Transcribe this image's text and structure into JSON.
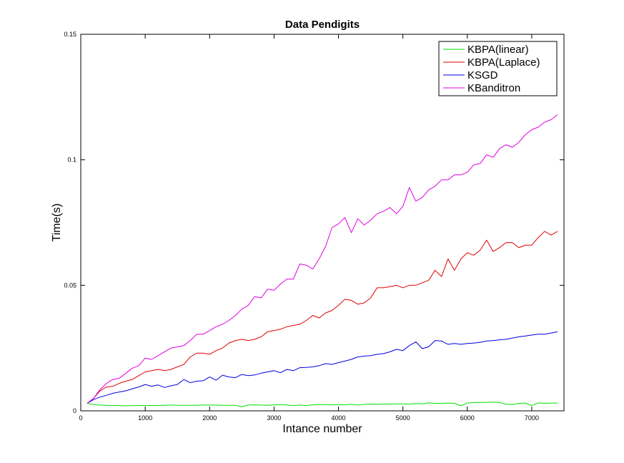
{
  "chart_data": {
    "type": "line",
    "title": "Data Pendigits",
    "xlabel": "Intance number",
    "ylabel": "Time(s)",
    "xlim": [
      0,
      7500
    ],
    "ylim": [
      0,
      0.15
    ],
    "xticks": [
      0,
      1000,
      2000,
      3000,
      4000,
      5000,
      6000,
      7000
    ],
    "xtick_labels": [
      "0",
      "1000",
      "2000",
      "3000",
      "4000",
      "5000",
      "6000",
      "7000"
    ],
    "yticks": [
      0,
      0.05,
      0.1,
      0.15
    ],
    "ytick_labels": [
      "0",
      "0.05",
      "0.1",
      "0.15"
    ],
    "grid": false,
    "legend_position": "top-right",
    "x": [
      100,
      200,
      300,
      400,
      500,
      600,
      700,
      800,
      900,
      1000,
      1100,
      1200,
      1300,
      1400,
      1500,
      1600,
      1700,
      1800,
      1900,
      2000,
      2100,
      2200,
      2300,
      2400,
      2500,
      2600,
      2700,
      2800,
      2900,
      3000,
      3100,
      3200,
      3300,
      3400,
      3500,
      3600,
      3700,
      3800,
      3900,
      4000,
      4100,
      4200,
      4300,
      4400,
      4500,
      4600,
      4700,
      4800,
      4900,
      5000,
      5100,
      5200,
      5300,
      5400,
      5500,
      5600,
      5700,
      5800,
      5900,
      6000,
      6100,
      6200,
      6300,
      6400,
      6500,
      6600,
      6700,
      6800,
      6900,
      7000,
      7100,
      7200,
      7300,
      7400
    ],
    "series": [
      {
        "name": "KBPA(linear)",
        "color": "#00e000",
        "values": [
          0.003,
          0.0025,
          0.0023,
          0.0022,
          0.0021,
          0.0021,
          0.002,
          0.0021,
          0.0021,
          0.0021,
          0.0021,
          0.0021,
          0.0022,
          0.0023,
          0.0022,
          0.0022,
          0.0022,
          0.0022,
          0.0023,
          0.0023,
          0.0023,
          0.0022,
          0.0022,
          0.0022,
          0.0016,
          0.0023,
          0.0024,
          0.0023,
          0.0022,
          0.0024,
          0.0025,
          0.0023,
          0.0021,
          0.0023,
          0.0021,
          0.0024,
          0.0025,
          0.0025,
          0.0024,
          0.0025,
          0.0024,
          0.0026,
          0.0023,
          0.0026,
          0.0027,
          0.0026,
          0.0027,
          0.0027,
          0.0028,
          0.0028,
          0.0027,
          0.0029,
          0.0028,
          0.0032,
          0.003,
          0.003,
          0.0031,
          0.003,
          0.002,
          0.0031,
          0.0033,
          0.0033,
          0.0034,
          0.0035,
          0.0033,
          0.0027,
          0.0025,
          0.003,
          0.0031,
          0.0021,
          0.0032,
          0.003,
          0.0031,
          0.0031
        ]
      },
      {
        "name": "KBPA(Laplace)",
        "color": "#e00000",
        "values": [
          0.003,
          0.005,
          0.008,
          0.0095,
          0.0098,
          0.011,
          0.0118,
          0.0125,
          0.014,
          0.0155,
          0.016,
          0.0165,
          0.016,
          0.0165,
          0.0175,
          0.0185,
          0.0215,
          0.023,
          0.023,
          0.0225,
          0.024,
          0.025,
          0.027,
          0.028,
          0.0285,
          0.028,
          0.0285,
          0.0295,
          0.0315,
          0.032,
          0.0325,
          0.0335,
          0.034,
          0.0345,
          0.036,
          0.038,
          0.037,
          0.039,
          0.04,
          0.042,
          0.0445,
          0.044,
          0.0425,
          0.043,
          0.045,
          0.049,
          0.049,
          0.0495,
          0.05,
          0.049,
          0.05,
          0.05,
          0.051,
          0.052,
          0.056,
          0.0535,
          0.0605,
          0.056,
          0.0605,
          0.063,
          0.062,
          0.064,
          0.068,
          0.0635,
          0.065,
          0.067,
          0.067,
          0.065,
          0.066,
          0.066,
          0.069,
          0.0715,
          0.07,
          0.0715
        ]
      },
      {
        "name": "KSGD",
        "color": "#0000e0",
        "values": [
          0.003,
          0.0045,
          0.0055,
          0.0062,
          0.007,
          0.0075,
          0.008,
          0.0088,
          0.0095,
          0.0105,
          0.0098,
          0.0103,
          0.0093,
          0.01,
          0.0105,
          0.0125,
          0.0112,
          0.0118,
          0.012,
          0.0135,
          0.0122,
          0.0142,
          0.0135,
          0.0132,
          0.0145,
          0.014,
          0.0143,
          0.015,
          0.0155,
          0.016,
          0.0152,
          0.0165,
          0.016,
          0.0172,
          0.0173,
          0.0175,
          0.018,
          0.0188,
          0.0185,
          0.0192,
          0.0198,
          0.0205,
          0.0215,
          0.0218,
          0.022,
          0.0225,
          0.0228,
          0.0235,
          0.0245,
          0.024,
          0.026,
          0.0275,
          0.0248,
          0.0255,
          0.028,
          0.0278,
          0.0265,
          0.0268,
          0.0265,
          0.0268,
          0.027,
          0.0273,
          0.0278,
          0.028,
          0.0283,
          0.0285,
          0.029,
          0.0295,
          0.0298,
          0.0302,
          0.0305,
          0.0305,
          0.031,
          0.0315
        ]
      },
      {
        "name": "KBanditron",
        "color": "#e000e0",
        "values": [
          0.003,
          0.005,
          0.0085,
          0.011,
          0.0125,
          0.013,
          0.015,
          0.017,
          0.018,
          0.021,
          0.0205,
          0.022,
          0.0235,
          0.025,
          0.0255,
          0.026,
          0.028,
          0.0305,
          0.0305,
          0.032,
          0.0335,
          0.0345,
          0.036,
          0.038,
          0.0405,
          0.042,
          0.0455,
          0.045,
          0.0485,
          0.048,
          0.0505,
          0.0525,
          0.0525,
          0.0585,
          0.058,
          0.0565,
          0.0605,
          0.0655,
          0.073,
          0.0745,
          0.077,
          0.071,
          0.0765,
          0.074,
          0.076,
          0.0785,
          0.0795,
          0.081,
          0.0785,
          0.0815,
          0.089,
          0.0835,
          0.085,
          0.088,
          0.0895,
          0.092,
          0.092,
          0.094,
          0.094,
          0.095,
          0.098,
          0.0985,
          0.102,
          0.101,
          0.1045,
          0.106,
          0.105,
          0.107,
          0.11,
          0.112,
          0.113,
          0.115,
          0.116,
          0.118
        ]
      }
    ]
  }
}
